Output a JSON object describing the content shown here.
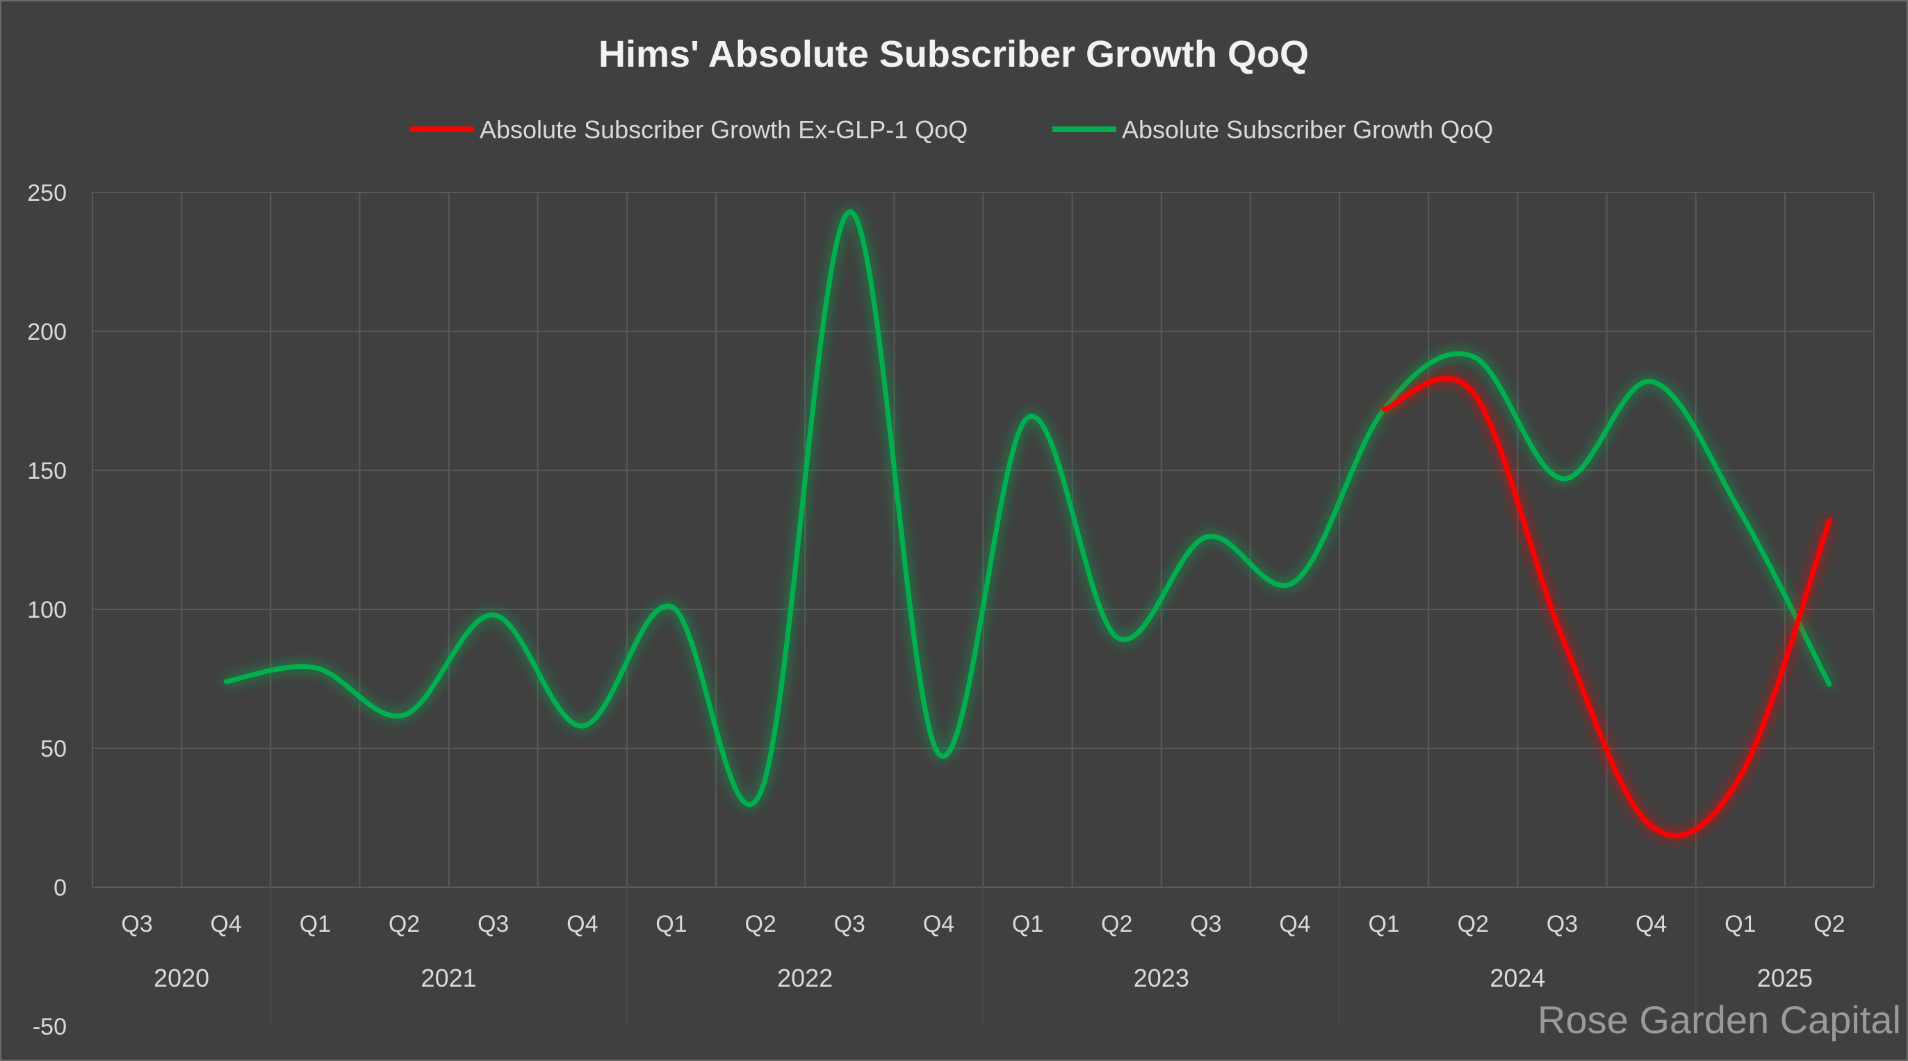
{
  "chart_data": {
    "type": "line",
    "title": "Hims' Absolute Subscriber Growth QoQ",
    "xlabel": "",
    "ylabel": "",
    "categories": [
      "Q3",
      "Q4",
      "Q1",
      "Q2",
      "Q3",
      "Q4",
      "Q1",
      "Q2",
      "Q3",
      "Q4",
      "Q1",
      "Q2",
      "Q3",
      "Q4",
      "Q1",
      "Q2",
      "Q3",
      "Q4",
      "Q1",
      "Q2"
    ],
    "year_groups": [
      {
        "label": "2020",
        "start": 0,
        "end": 1
      },
      {
        "label": "2021",
        "start": 2,
        "end": 5
      },
      {
        "label": "2022",
        "start": 6,
        "end": 9
      },
      {
        "label": "2023",
        "start": 10,
        "end": 13
      },
      {
        "label": "2024",
        "start": 14,
        "end": 17
      },
      {
        "label": "2025",
        "start": 18,
        "end": 19
      }
    ],
    "ylim": [
      -50,
      250
    ],
    "yticks": [
      -50,
      0,
      50,
      100,
      150,
      200,
      250
    ],
    "grid": true,
    "legend_position": "top",
    "series": [
      {
        "name": "Absolute Subscriber Growth Ex-GLP-1 QoQ",
        "color": "#ff0000",
        "values": [
          null,
          null,
          null,
          null,
          null,
          null,
          null,
          null,
          null,
          null,
          null,
          null,
          null,
          null,
          172,
          178,
          90,
          22,
          40,
          132
        ]
      },
      {
        "name": "Absolute Subscriber Growth QoQ",
        "color": "#00b050",
        "values": [
          null,
          74,
          79,
          62,
          98,
          58,
          101,
          34,
          243,
          48,
          169,
          90,
          126,
          110,
          172,
          191,
          147,
          182,
          135,
          73
        ]
      }
    ]
  },
  "watermark": "Rose Garden Capital"
}
